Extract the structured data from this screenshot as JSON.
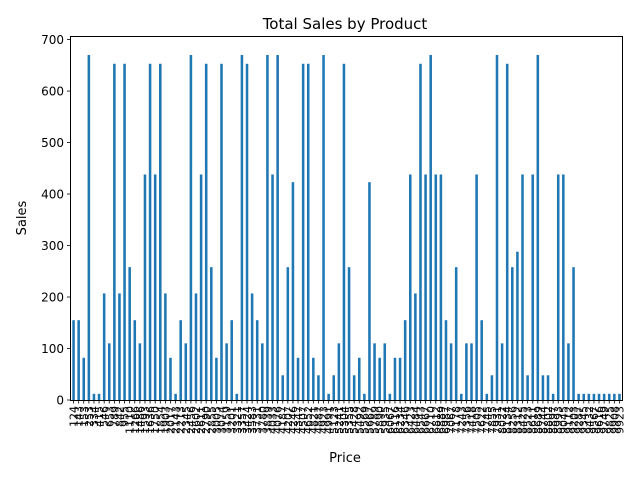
{
  "chart_data": {
    "type": "bar",
    "title": "Total Sales by Product",
    "xlabel": "Price",
    "ylabel": "Sales",
    "ylim": [
      0,
      705
    ],
    "yticks": [
      0,
      100,
      200,
      300,
      400,
      500,
      600,
      700
    ],
    "grid": false,
    "legend": "none",
    "bar_color": "#1f77b4",
    "categories": [
      "124",
      "143",
      "153",
      "253",
      "334",
      "415",
      "546",
      "653",
      "789",
      "842",
      "955",
      "1110",
      "1266",
      "1486",
      "1593",
      "1636",
      "1750",
      "1854",
      "1903",
      "2017",
      "2143",
      "2213",
      "2345",
      "2456",
      "2602",
      "2611",
      "2790",
      "2855",
      "3005",
      "3074",
      "3159",
      "3201",
      "3321",
      "3357",
      "3424",
      "3583",
      "3731",
      "3780",
      "3839",
      "4033",
      "4076",
      "4187",
      "4207",
      "4246",
      "4347",
      "4507",
      "4652",
      "4821",
      "4887",
      "4923",
      "4991",
      "5123",
      "5241",
      "5304",
      "5355",
      "5428",
      "5492",
      "5569",
      "5667",
      "5789",
      "5890",
      "5935",
      "6067",
      "6116",
      "6234",
      "6346",
      "6423",
      "6484",
      "6543",
      "6667",
      "6710",
      "6812",
      "6889",
      "6987",
      "7067",
      "7178",
      "7243",
      "7356",
      "7418",
      "7505",
      "7622",
      "7745",
      "7855",
      "7931",
      "8022",
      "8134",
      "8256",
      "8312",
      "8425",
      "8523",
      "8611",
      "8689",
      "8744",
      "8802",
      "8897",
      "8993",
      "9045",
      "9112",
      "9203",
      "9287",
      "9345",
      "9432",
      "9567",
      "9616",
      "9749",
      "9825",
      "9908",
      "9923"
    ],
    "values": [
      155,
      155,
      82,
      670,
      12,
      12,
      207,
      110,
      653,
      207,
      653,
      258,
      155,
      110,
      438,
      653,
      438,
      653,
      207,
      82,
      12,
      155,
      110,
      670,
      207,
      438,
      653,
      258,
      82,
      653,
      110,
      155,
      12,
      670,
      653,
      207,
      155,
      110,
      670,
      438,
      670,
      48,
      258,
      423,
      82,
      653,
      653,
      82,
      48,
      670,
      12,
      48,
      110,
      653,
      258,
      48,
      82,
      12,
      423,
      110,
      82,
      110,
      12,
      82,
      82,
      155,
      438,
      207,
      653,
      438,
      670,
      438,
      438,
      155,
      110,
      258,
      12,
      110,
      110,
      438,
      155,
      12,
      48,
      670,
      110,
      653,
      258,
      288,
      438,
      48,
      438,
      670,
      48,
      48,
      12,
      438,
      438,
      110,
      258,
      12,
      12,
      12,
      12,
      12,
      12,
      12,
      12,
      12
    ]
  }
}
